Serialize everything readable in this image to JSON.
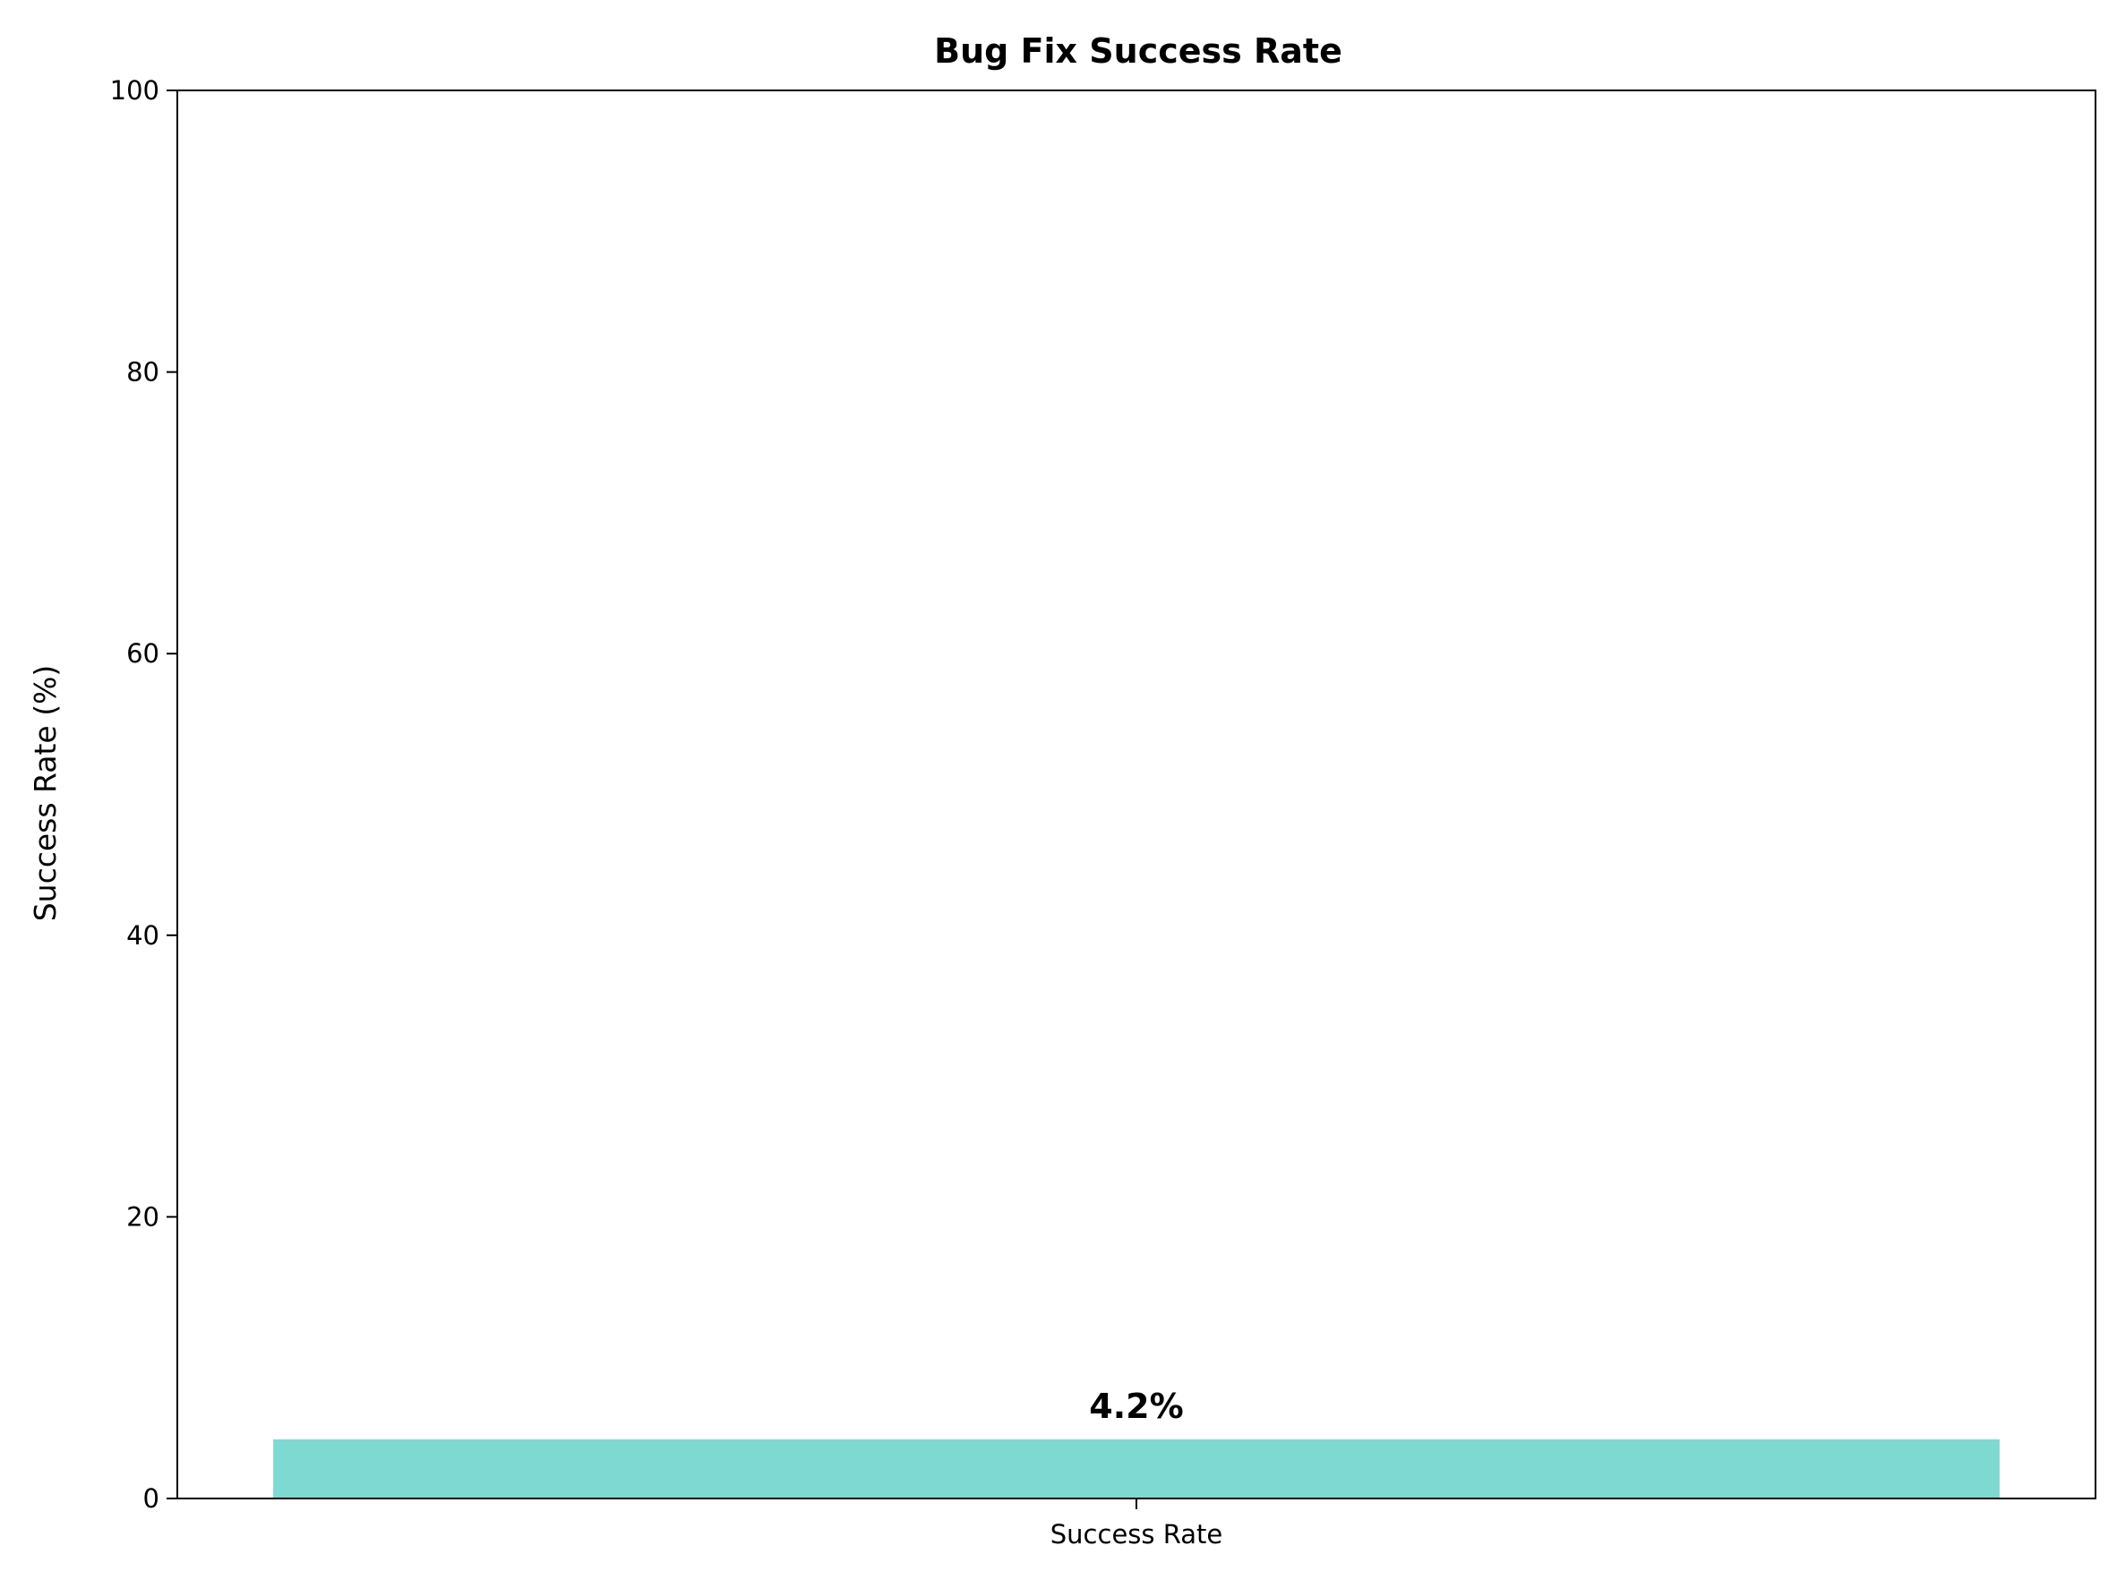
{
  "chart_data": {
    "type": "bar",
    "title": "Bug Fix Success Rate",
    "xlabel": "",
    "ylabel": "Success Rate (%)",
    "categories": [
      "Success Rate"
    ],
    "values": [
      4.2
    ],
    "data_labels": [
      "4.2%"
    ],
    "ylim": [
      0,
      100
    ],
    "yticks": [
      0,
      20,
      40,
      60,
      80,
      100
    ],
    "ytick_labels": [
      "0",
      "20",
      "40",
      "60",
      "80",
      "100"
    ],
    "bar_color": "#7fd9d3",
    "grid": false,
    "legend": "none"
  }
}
